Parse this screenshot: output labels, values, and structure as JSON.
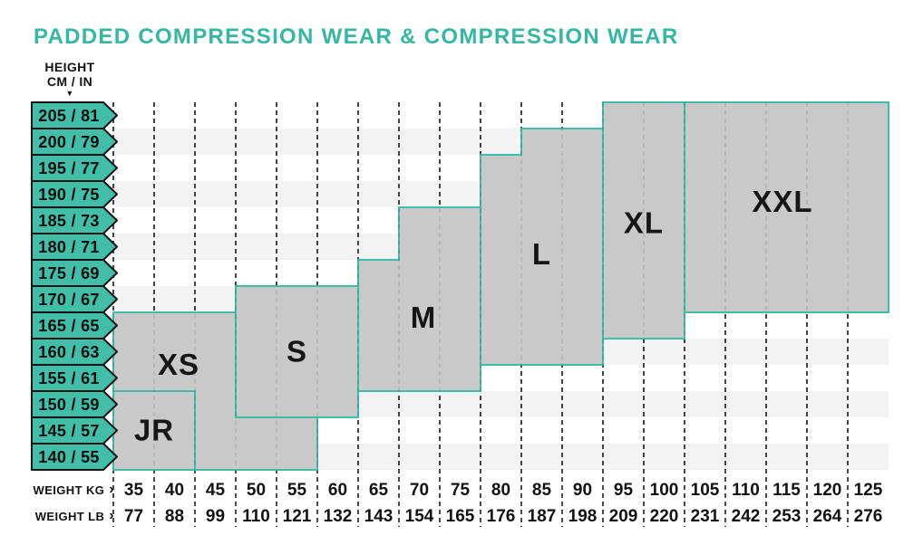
{
  "title": "PADDED COMPRESSION WEAR & COMPRESSION WEAR",
  "colors": {
    "teal_border": "#3ebda8",
    "teal_fill": "#41bda8",
    "title_teal": "#35b7a1",
    "region_fill": "#c9c9c9",
    "stripe": "#f3f3f3",
    "row_white": "#ffffff",
    "dash": "#2b2b2b",
    "text": "#121212"
  },
  "height_axis": {
    "label_line1": "HEIGHT",
    "label_line2": "CM / IN",
    "arrow_icon": "▼"
  },
  "weight_axis": {
    "kg_label": "WEIGHT KG",
    "lb_label": "WEIGHT LB",
    "arrow_icon": "›"
  },
  "chart_data": {
    "type": "table",
    "title": "PADDED COMPRESSION WEAR & COMPRESSION WEAR",
    "x_axis": {
      "label": "WEIGHT KG",
      "values": [
        35,
        40,
        45,
        50,
        55,
        60,
        65,
        70,
        75,
        80,
        85,
        90,
        95,
        100,
        105,
        110,
        115,
        120,
        125
      ]
    },
    "x_axis_secondary": {
      "label": "WEIGHT LB",
      "values": [
        77,
        88,
        99,
        110,
        121,
        132,
        143,
        154,
        165,
        176,
        187,
        198,
        209,
        220,
        231,
        242,
        253,
        264,
        276
      ]
    },
    "y_axis": {
      "label": "HEIGHT CM / IN",
      "values": [
        "205 / 81",
        "200 / 79",
        "195 / 77",
        "190 / 75",
        "185 / 73",
        "180 / 71",
        "175 / 69",
        "170 / 67",
        "165 / 65",
        "160 / 63",
        "155 / 61",
        "150 / 59",
        "145 / 57",
        "140 / 55"
      ]
    },
    "grid": {
      "columns": 19,
      "rows": 14,
      "stripe_even_rows": "white",
      "stripe_odd_rows": "light-gray",
      "column_gridlines": "dashed"
    },
    "regions": [
      {
        "name": "XS",
        "polygon_grid": [
          [
            0,
            8
          ],
          [
            5,
            8
          ],
          [
            5,
            14
          ],
          [
            0,
            14
          ]
        ],
        "label_pos": [
          1.6,
          10.0
        ]
      },
      {
        "name": "JR",
        "polygon_grid": [
          [
            0,
            11
          ],
          [
            2,
            11
          ],
          [
            2,
            14
          ],
          [
            0,
            14
          ]
        ],
        "label_pos": [
          1.0,
          12.5
        ]
      },
      {
        "name": "S",
        "polygon_grid": [
          [
            3,
            7
          ],
          [
            6,
            7
          ],
          [
            6,
            12
          ],
          [
            3,
            12
          ]
        ],
        "label_pos": [
          4.5,
          9.5
        ]
      },
      {
        "name": "M",
        "polygon_grid": [
          [
            6,
            6
          ],
          [
            7,
            6
          ],
          [
            7,
            4
          ],
          [
            9,
            4
          ],
          [
            9,
            11
          ],
          [
            6,
            11
          ]
        ],
        "label_pos": [
          7.6,
          8.2
        ]
      },
      {
        "name": "L",
        "polygon_grid": [
          [
            9,
            2
          ],
          [
            10,
            2
          ],
          [
            10,
            1
          ],
          [
            12,
            1
          ],
          [
            12,
            10
          ],
          [
            9,
            10
          ]
        ],
        "label_pos": [
          10.5,
          5.8
        ]
      },
      {
        "name": "XL",
        "polygon_grid": [
          [
            12,
            0
          ],
          [
            14,
            0
          ],
          [
            14,
            9
          ],
          [
            12,
            9
          ]
        ],
        "label_pos": [
          13.0,
          4.6
        ]
      },
      {
        "name": "XXL",
        "polygon_grid": [
          [
            14,
            0
          ],
          [
            19,
            0
          ],
          [
            19,
            8
          ],
          [
            14,
            8
          ]
        ],
        "label_pos": [
          16.4,
          3.8
        ]
      }
    ]
  }
}
